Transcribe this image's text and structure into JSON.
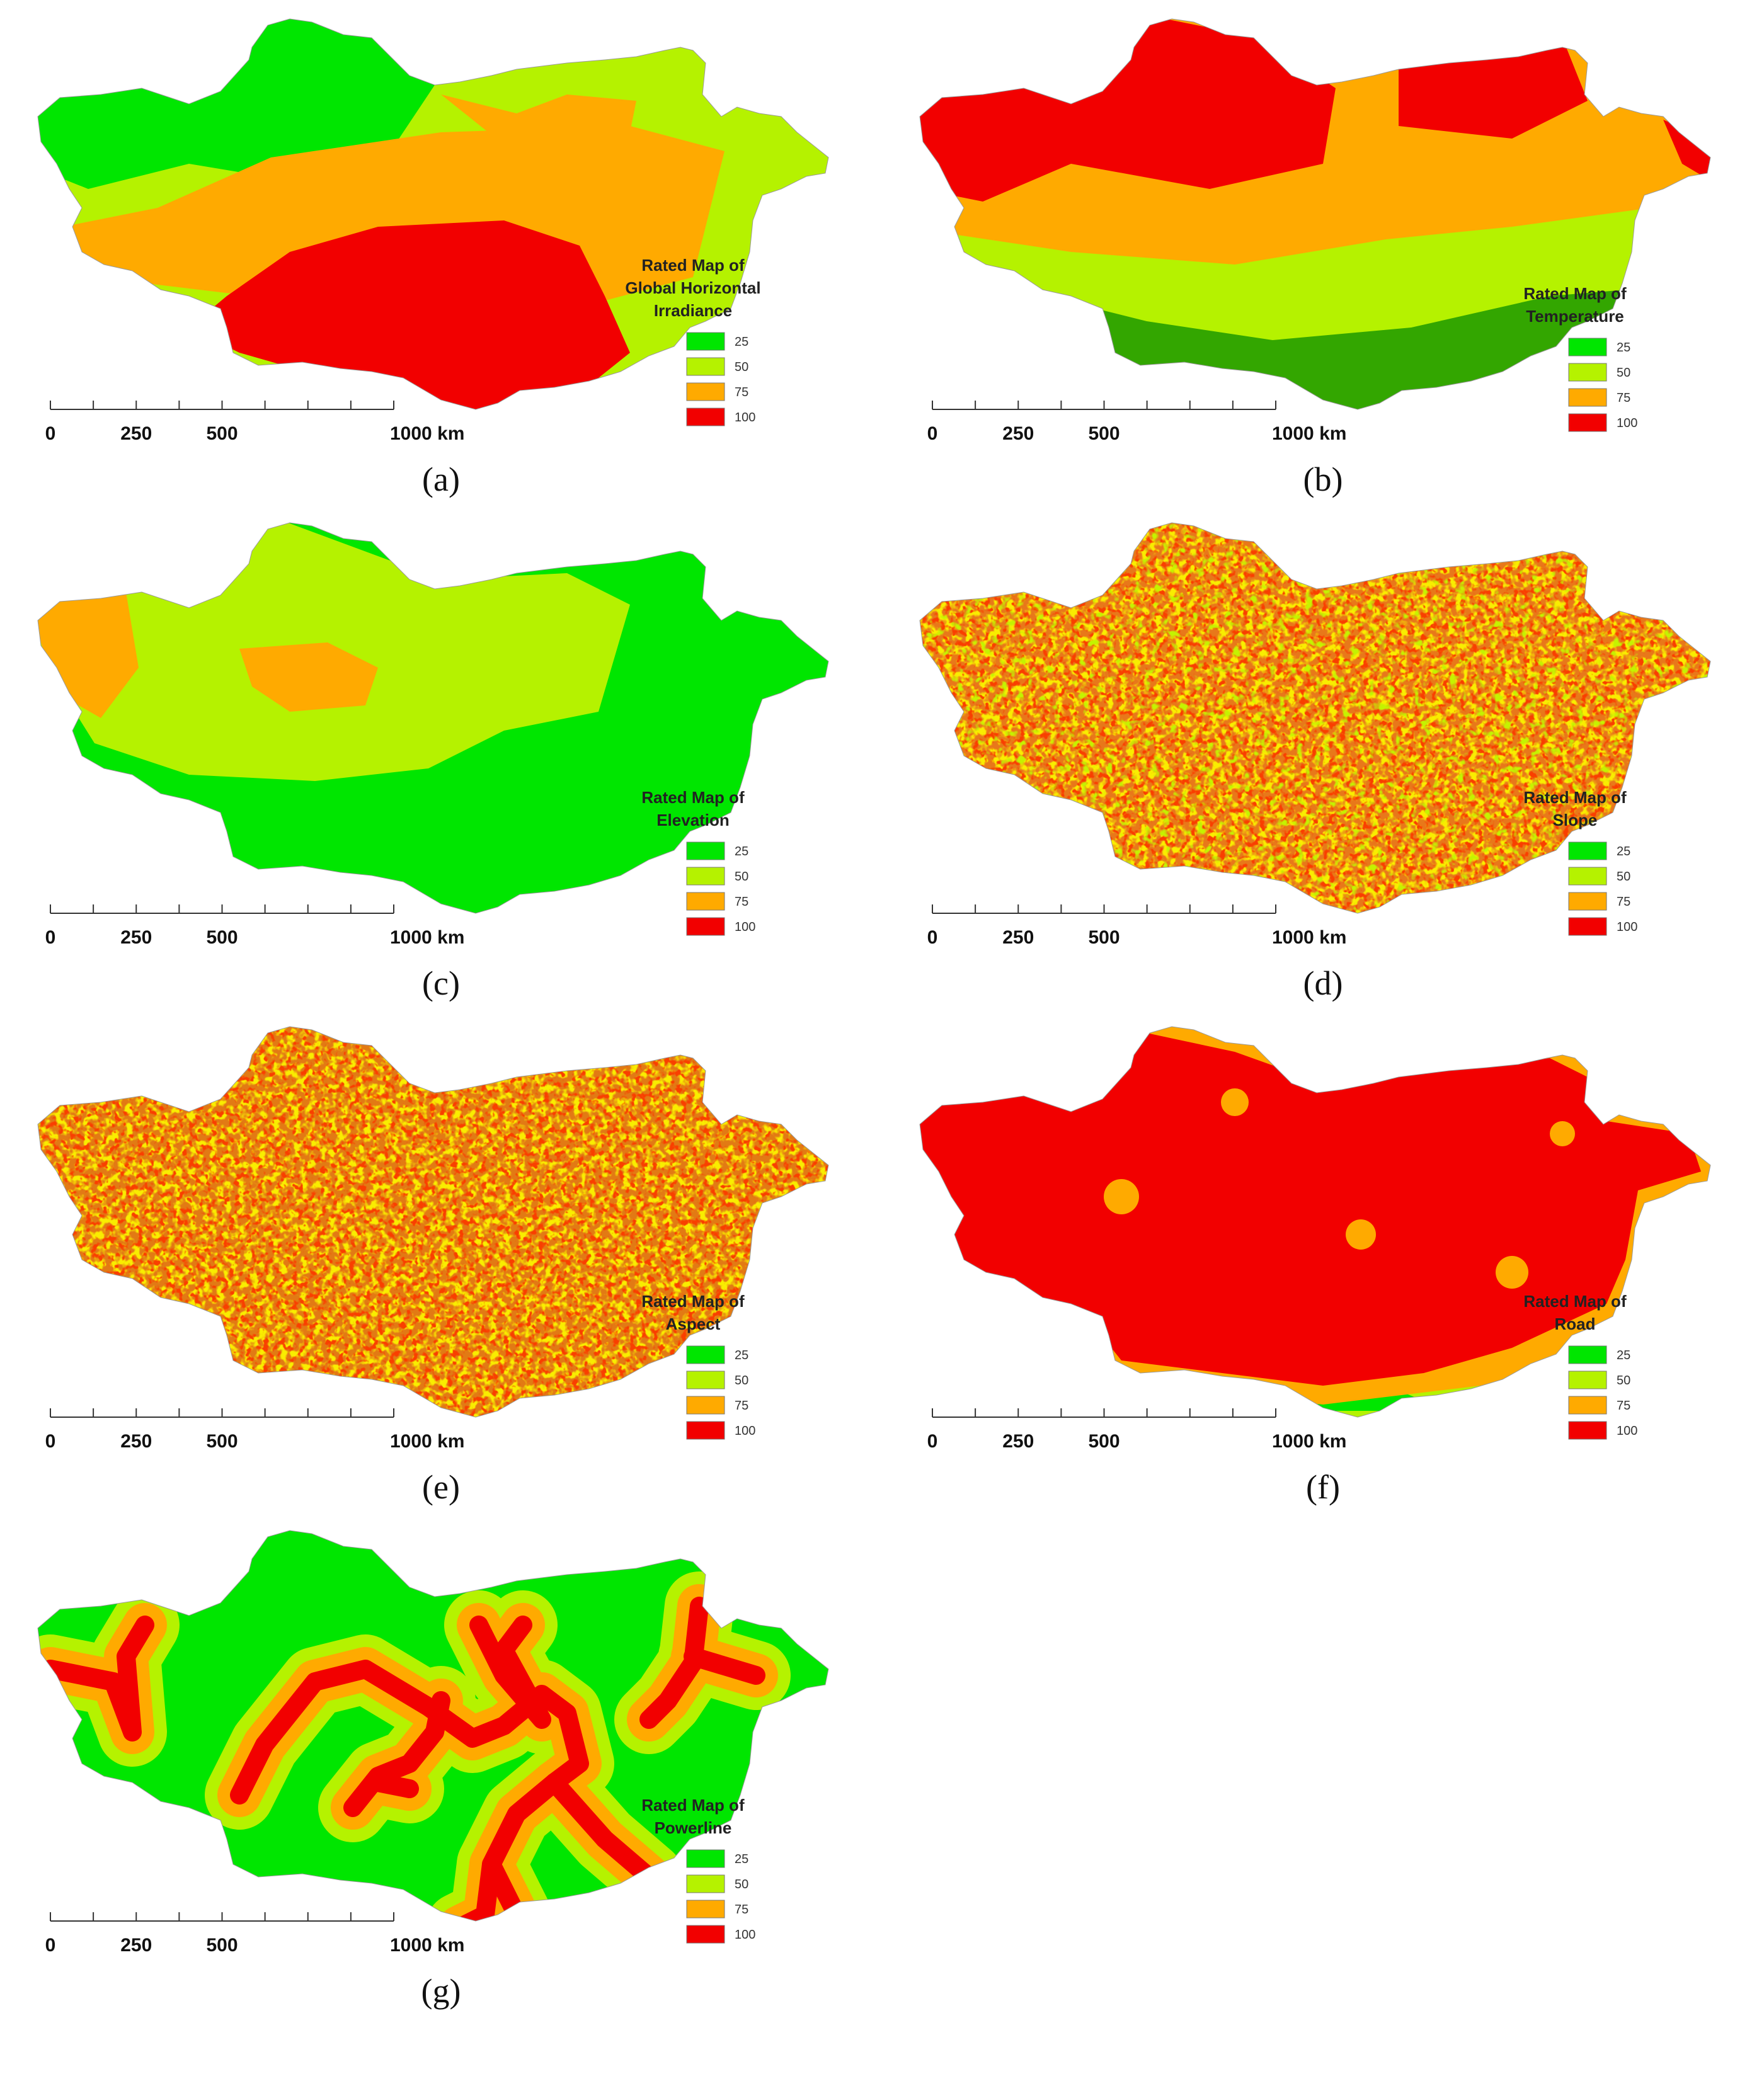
{
  "legend_values": [
    "25",
    "50",
    "75",
    "100"
  ],
  "colors": {
    "c25": "#00e600",
    "c50": "#b5f200",
    "c75": "#ffaa00",
    "c100": "#f20000",
    "dark_green": "#33a600"
  },
  "scale_labels": [
    "0",
    "250",
    "500",
    "1000 km"
  ],
  "panels": [
    {
      "id": "a",
      "caption": "(a)",
      "legend_title": [
        "Rated Map of",
        "Global Horizontal",
        "Irradiance"
      ]
    },
    {
      "id": "b",
      "caption": "(b)",
      "legend_title": [
        "Rated Map of",
        "Temperature"
      ]
    },
    {
      "id": "c",
      "caption": "(c)",
      "legend_title": [
        "Rated Map of",
        "Elevation"
      ]
    },
    {
      "id": "d",
      "caption": "(d)",
      "legend_title": [
        "Rated Map of",
        "Slope"
      ]
    },
    {
      "id": "e",
      "caption": "(e)",
      "legend_title": [
        "Rated Map of",
        "Aspect"
      ]
    },
    {
      "id": "f",
      "caption": "(f)",
      "legend_title": [
        "Rated Map of",
        "Road"
      ]
    },
    {
      "id": "g",
      "caption": "(g)",
      "legend_title": [
        "Rated Map of",
        "Powerline"
      ]
    }
  ]
}
